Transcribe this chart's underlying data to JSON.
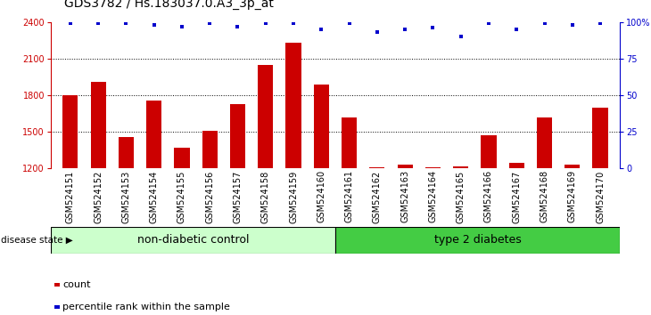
{
  "title": "GDS3782 / Hs.183037.0.A3_3p_at",
  "samples": [
    "GSM524151",
    "GSM524152",
    "GSM524153",
    "GSM524154",
    "GSM524155",
    "GSM524156",
    "GSM524157",
    "GSM524158",
    "GSM524159",
    "GSM524160",
    "GSM524161",
    "GSM524162",
    "GSM524163",
    "GSM524164",
    "GSM524165",
    "GSM524166",
    "GSM524167",
    "GSM524168",
    "GSM524169",
    "GSM524170"
  ],
  "counts": [
    1800,
    1910,
    1460,
    1760,
    1370,
    1510,
    1730,
    2050,
    2230,
    1890,
    1620,
    1210,
    1230,
    1210,
    1215,
    1470,
    1250,
    1620,
    1230,
    1700
  ],
  "percentiles": [
    99,
    99,
    99,
    98,
    97,
    99,
    97,
    99,
    99,
    95,
    99,
    93,
    95,
    96,
    90,
    99,
    95,
    99,
    98,
    99
  ],
  "ylim_left": [
    1200,
    2400
  ],
  "ylim_right": [
    0,
    100
  ],
  "yticks_left": [
    1200,
    1500,
    1800,
    2100,
    2400
  ],
  "yticks_right": [
    0,
    25,
    50,
    75,
    100
  ],
  "bar_color": "#cc0000",
  "dot_color": "#0000cc",
  "bg_plot": "#e8e8e8",
  "bg_label_non": "#ccffcc",
  "bg_label_dia": "#44cc44",
  "non_diabetic_count": 10,
  "type2_count": 10,
  "label_non": "non-diabetic control",
  "label_dia": "type 2 diabetes",
  "disease_label": "disease state",
  "legend_count": "count",
  "legend_pct": "percentile rank within the sample",
  "title_fontsize": 10,
  "tick_fontsize": 7,
  "label_fontsize": 9
}
